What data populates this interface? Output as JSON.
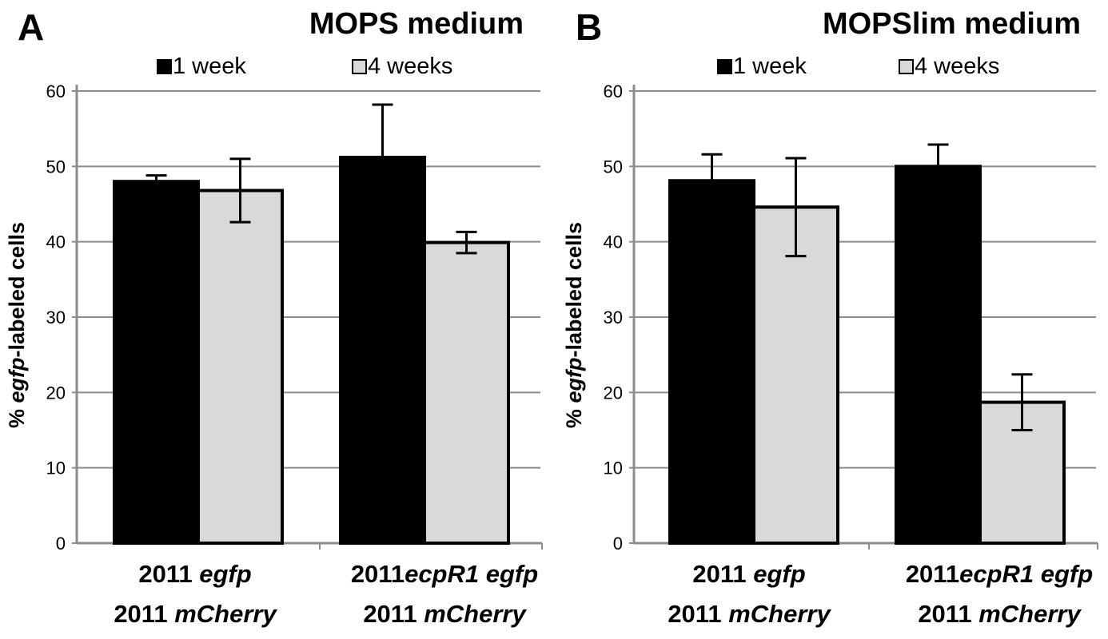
{
  "chart_data": [
    {
      "type": "bar",
      "panel_label": "A",
      "title": "MOPS medium",
      "ylabel": {
        "prefix": "% ",
        "italic": "egfp",
        "suffix": "-labeled cells"
      },
      "ylim": [
        0,
        60
      ],
      "yticks": [
        "0",
        "10",
        "20",
        "30",
        "40",
        "50",
        "60"
      ],
      "grid": true,
      "legend_position": "top",
      "categories": [
        {
          "line1": [
            {
              "text": "2011 ",
              "italic": false
            },
            {
              "text": "egfp",
              "italic": true
            }
          ],
          "line2": [
            {
              "text": "2011 ",
              "italic": false
            },
            {
              "text": "mCherry",
              "italic": true
            }
          ]
        },
        {
          "line1": [
            {
              "text": "2011",
              "italic": false
            },
            {
              "text": "ecpR1",
              "italic": true
            },
            {
              "text": " ",
              "italic": false
            },
            {
              "text": "egfp",
              "italic": true
            }
          ],
          "line2": [
            {
              "text": "2011 ",
              "italic": false
            },
            {
              "text": "mCherry",
              "italic": true
            }
          ]
        }
      ],
      "series": [
        {
          "name": "1 week",
          "color": "#000000",
          "values": [
            48,
            51.2
          ],
          "errors": [
            0.8,
            7
          ]
        },
        {
          "name": "4 weeks",
          "color": "#d9d9d9",
          "values": [
            46.8,
            39.9
          ],
          "errors": [
            4.2,
            1.4
          ]
        }
      ]
    },
    {
      "type": "bar",
      "panel_label": "B",
      "title": "MOPSlim medium",
      "ylabel": {
        "prefix": "% ",
        "italic": "egfp",
        "suffix": "-labeled cells"
      },
      "ylim": [
        0,
        60
      ],
      "yticks": [
        "0",
        "10",
        "20",
        "30",
        "40",
        "50",
        "60"
      ],
      "grid": true,
      "legend_position": "top",
      "categories": [
        {
          "line1": [
            {
              "text": "2011 ",
              "italic": false
            },
            {
              "text": "egfp",
              "italic": true
            }
          ],
          "line2": [
            {
              "text": "2011 ",
              "italic": false
            },
            {
              "text": "mCherry",
              "italic": true
            }
          ]
        },
        {
          "line1": [
            {
              "text": "2011",
              "italic": false
            },
            {
              "text": "ecpR1",
              "italic": true
            },
            {
              "text": " ",
              "italic": false
            },
            {
              "text": "egfp",
              "italic": true
            }
          ],
          "line2": [
            {
              "text": "2011 ",
              "italic": false
            },
            {
              "text": "mCherry",
              "italic": true
            }
          ]
        }
      ],
      "series": [
        {
          "name": "1 week",
          "color": "#000000",
          "values": [
            48.1,
            50
          ],
          "errors": [
            3.5,
            2.9
          ]
        },
        {
          "name": "4 weeks",
          "color": "#d9d9d9",
          "values": [
            44.6,
            18.7
          ],
          "errors": [
            6.5,
            3.7
          ]
        }
      ]
    }
  ]
}
